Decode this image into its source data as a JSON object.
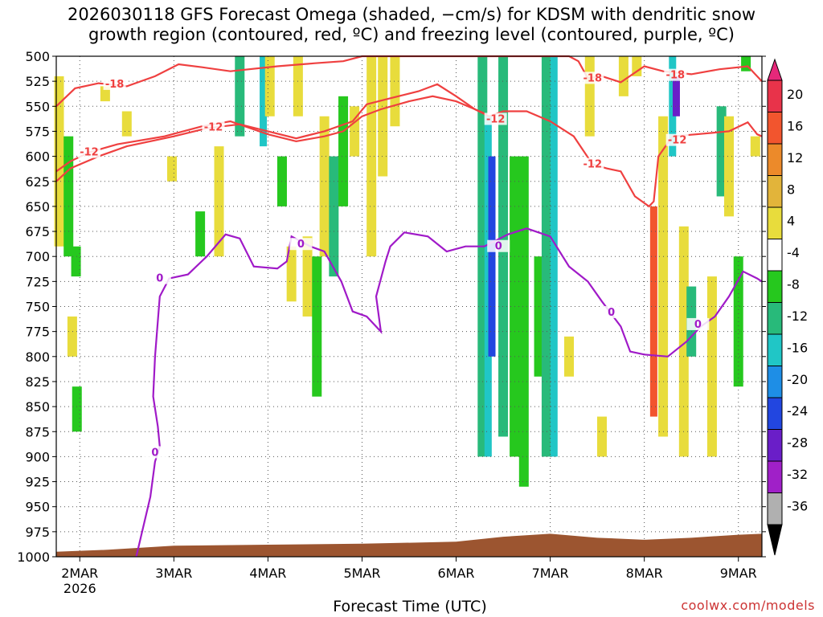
{
  "title_line1": "2026030118 GFS Forecast Omega (shaded, −cm/s) for KDSM with dendritic snow",
  "title_line2": "growth region (contoured, red, ºC) and freezing level (contoured, purple, ºC)",
  "credit": "coolwx.com/models",
  "chart_data": {
    "type": "heatmap",
    "title": "2026030118 GFS Forecast Omega (shaded, −cm/s) for KDSM with dendritic snow growth region (contoured, red, ºC) and freezing level (contoured, purple, ºC)",
    "xlabel": "Forecast Time (UTC)",
    "ylabel": "",
    "y_axis_inverted": true,
    "ylim": [
      1000,
      500
    ],
    "y_ticks": [
      500,
      525,
      550,
      575,
      600,
      625,
      650,
      675,
      700,
      725,
      750,
      775,
      800,
      825,
      850,
      875,
      900,
      925,
      950,
      975,
      1000
    ],
    "x_range_day": [
      1.75,
      9.25
    ],
    "x_ticks": [
      {
        "day": 2,
        "label": "2MAR",
        "sub": "2026"
      },
      {
        "day": 3,
        "label": "3MAR",
        "sub": ""
      },
      {
        "day": 4,
        "label": "4MAR",
        "sub": ""
      },
      {
        "day": 5,
        "label": "5MAR",
        "sub": ""
      },
      {
        "day": 6,
        "label": "6MAR",
        "sub": ""
      },
      {
        "day": 7,
        "label": "7MAR",
        "sub": ""
      },
      {
        "day": 8,
        "label": "8MAR",
        "sub": ""
      },
      {
        "day": 9,
        "label": "9MAR",
        "sub": ""
      }
    ],
    "grid": true,
    "colorbar": {
      "labels": [
        20,
        16,
        12,
        8,
        4,
        -4,
        -8,
        -12,
        -16,
        -20,
        -24,
        -28,
        -32,
        -36
      ],
      "colors": [
        "#e8334a",
        "#f2552e",
        "#ec8a2a",
        "#e2b43a",
        "#e8dc3c",
        "#ffffff",
        "#26c81e",
        "#28ba7a",
        "#20c6c6",
        "#1e8ee6",
        "#2246e0",
        "#6a1ec8",
        "#a020c8",
        "#b0b0b0"
      ],
      "top_triangle": "#e6287a",
      "bottom_triangle": "#000000"
    },
    "omega_cells": [
      {
        "day": 1.78,
        "p_top": 520,
        "p_bot": 690,
        "val": 6
      },
      {
        "day": 1.88,
        "p_top": 580,
        "p_bot": 700,
        "val": -6
      },
      {
        "day": 1.96,
        "p_top": 690,
        "p_bot": 720,
        "val": -6
      },
      {
        "day": 1.92,
        "p_top": 760,
        "p_bot": 800,
        "val": 6
      },
      {
        "day": 1.97,
        "p_top": 830,
        "p_bot": 875,
        "val": -6
      },
      {
        "day": 2.27,
        "p_top": 530,
        "p_bot": 545,
        "val": 6
      },
      {
        "day": 2.5,
        "p_top": 555,
        "p_bot": 580,
        "val": 6
      },
      {
        "day": 2.98,
        "p_top": 600,
        "p_bot": 625,
        "val": 6
      },
      {
        "day": 3.28,
        "p_top": 655,
        "p_bot": 700,
        "val": -6
      },
      {
        "day": 3.48,
        "p_top": 590,
        "p_bot": 700,
        "val": 6
      },
      {
        "day": 3.7,
        "p_top": 500,
        "p_bot": 580,
        "val": -8
      },
      {
        "day": 3.95,
        "p_top": 500,
        "p_bot": 590,
        "val": -14
      },
      {
        "day": 4.02,
        "p_top": 500,
        "p_bot": 560,
        "val": 6
      },
      {
        "day": 4.15,
        "p_top": 600,
        "p_bot": 650,
        "val": -6
      },
      {
        "day": 4.25,
        "p_top": 690,
        "p_bot": 745,
        "val": 6
      },
      {
        "day": 4.32,
        "p_top": 500,
        "p_bot": 560,
        "val": 6
      },
      {
        "day": 4.42,
        "p_top": 680,
        "p_bot": 760,
        "val": 6
      },
      {
        "day": 4.52,
        "p_top": 700,
        "p_bot": 840,
        "val": -6
      },
      {
        "day": 4.6,
        "p_top": 560,
        "p_bot": 700,
        "val": 6
      },
      {
        "day": 4.7,
        "p_top": 600,
        "p_bot": 720,
        "val": -8
      },
      {
        "day": 4.8,
        "p_top": 540,
        "p_bot": 650,
        "val": -6
      },
      {
        "day": 4.92,
        "p_top": 550,
        "p_bot": 600,
        "val": 6
      },
      {
        "day": 5.1,
        "p_top": 500,
        "p_bot": 700,
        "val": 6
      },
      {
        "day": 5.22,
        "p_top": 500,
        "p_bot": 620,
        "val": 6
      },
      {
        "day": 5.35,
        "p_top": 500,
        "p_bot": 570,
        "val": 6
      },
      {
        "day": 6.28,
        "p_top": 500,
        "p_bot": 900,
        "val": -8
      },
      {
        "day": 6.34,
        "p_top": 560,
        "p_bot": 900,
        "val": -12
      },
      {
        "day": 6.38,
        "p_top": 600,
        "p_bot": 800,
        "val": -22
      },
      {
        "day": 6.5,
        "p_top": 500,
        "p_bot": 880,
        "val": -8
      },
      {
        "day": 6.62,
        "p_top": 600,
        "p_bot": 900,
        "val": -6
      },
      {
        "day": 6.72,
        "p_top": 600,
        "p_bot": 930,
        "val": -6
      },
      {
        "day": 6.88,
        "p_top": 700,
        "p_bot": 820,
        "val": -6
      },
      {
        "day": 6.96,
        "p_top": 500,
        "p_bot": 900,
        "val": -8
      },
      {
        "day": 7.04,
        "p_top": 500,
        "p_bot": 900,
        "val": -14
      },
      {
        "day": 7.2,
        "p_top": 780,
        "p_bot": 820,
        "val": 6
      },
      {
        "day": 7.42,
        "p_top": 500,
        "p_bot": 580,
        "val": 6
      },
      {
        "day": 7.55,
        "p_top": 860,
        "p_bot": 900,
        "val": 6
      },
      {
        "day": 7.78,
        "p_top": 500,
        "p_bot": 540,
        "val": 6
      },
      {
        "day": 7.92,
        "p_top": 500,
        "p_bot": 520,
        "val": 6
      },
      {
        "day": 8.1,
        "p_top": 650,
        "p_bot": 860,
        "val": 12
      },
      {
        "day": 8.2,
        "p_top": 560,
        "p_bot": 880,
        "val": 6
      },
      {
        "day": 8.3,
        "p_top": 500,
        "p_bot": 600,
        "val": -14
      },
      {
        "day": 8.34,
        "p_top": 520,
        "p_bot": 560,
        "val": -24
      },
      {
        "day": 8.42,
        "p_top": 670,
        "p_bot": 900,
        "val": 6
      },
      {
        "day": 8.5,
        "p_top": 730,
        "p_bot": 800,
        "val": -8
      },
      {
        "day": 8.72,
        "p_top": 720,
        "p_bot": 900,
        "val": 6
      },
      {
        "day": 8.82,
        "p_top": 550,
        "p_bot": 640,
        "val": -8
      },
      {
        "day": 8.9,
        "p_top": 560,
        "p_bot": 660,
        "val": 6
      },
      {
        "day": 9.0,
        "p_top": 700,
        "p_bot": 830,
        "val": -6
      },
      {
        "day": 9.08,
        "p_top": 500,
        "p_bot": 515,
        "val": -6
      },
      {
        "day": 9.18,
        "p_top": 580,
        "p_bot": 600,
        "val": 6
      }
    ],
    "terrain_color": "#9c5530",
    "terrain": [
      {
        "day": 1.75,
        "p": 995
      },
      {
        "day": 2.3,
        "p": 993
      },
      {
        "day": 3.0,
        "p": 989
      },
      {
        "day": 4.0,
        "p": 988
      },
      {
        "day": 5.0,
        "p": 987
      },
      {
        "day": 6.0,
        "p": 985
      },
      {
        "day": 6.5,
        "p": 980
      },
      {
        "day": 7.0,
        "p": 977
      },
      {
        "day": 7.5,
        "p": 981
      },
      {
        "day": 8.0,
        "p": 983
      },
      {
        "day": 8.5,
        "p": 981
      },
      {
        "day": 9.0,
        "p": 978
      },
      {
        "day": 9.25,
        "p": 977
      }
    ],
    "contours": [
      {
        "name": "-18",
        "color": "#ef4040",
        "label_color": "#ef4040",
        "labels": [
          {
            "day": 2.37,
            "p": 528
          },
          {
            "day": 7.45,
            "p": 522
          },
          {
            "day": 8.33,
            "p": 519
          }
        ],
        "points": [
          [
            1.75,
            550
          ],
          [
            1.95,
            532
          ],
          [
            2.2,
            527
          ],
          [
            2.5,
            530
          ],
          [
            2.8,
            520
          ],
          [
            3.05,
            508
          ],
          [
            3.3,
            511
          ],
          [
            3.6,
            515
          ],
          [
            4.1,
            510
          ],
          [
            4.5,
            507
          ],
          [
            4.8,
            505
          ],
          [
            5.0,
            500
          ],
          [
            5.5,
            500
          ],
          [
            6.0,
            500
          ],
          [
            6.5,
            500
          ],
          [
            7.0,
            500
          ],
          [
            7.2,
            500
          ],
          [
            7.3,
            505
          ],
          [
            7.4,
            522
          ],
          [
            7.55,
            520
          ],
          [
            7.75,
            526
          ],
          [
            8.0,
            510
          ],
          [
            8.2,
            515
          ],
          [
            8.5,
            518
          ],
          [
            8.8,
            513
          ],
          [
            9.1,
            510
          ],
          [
            9.25,
            525
          ]
        ]
      },
      {
        "name": "-12 upper",
        "color": "#ef4040",
        "label_color": "#ef4040",
        "labels": [
          {
            "day": 3.42,
            "p": 571
          },
          {
            "day": 6.42,
            "p": 563
          },
          {
            "day": 7.45,
            "p": 608
          },
          {
            "day": 8.35,
            "p": 584
          }
        ],
        "points": [
          [
            1.75,
            625
          ],
          [
            1.9,
            612
          ],
          [
            2.2,
            600
          ],
          [
            2.5,
            590
          ],
          [
            3.0,
            580
          ],
          [
            3.35,
            572
          ],
          [
            3.7,
            568
          ],
          [
            4.0,
            575
          ],
          [
            4.3,
            582
          ],
          [
            4.6,
            575
          ],
          [
            4.9,
            565
          ],
          [
            5.05,
            548
          ],
          [
            5.3,
            542
          ],
          [
            5.6,
            535
          ],
          [
            5.8,
            528
          ],
          [
            6.0,
            540
          ],
          [
            6.2,
            553
          ],
          [
            6.35,
            560
          ],
          [
            6.5,
            555
          ],
          [
            6.75,
            555
          ],
          [
            7.0,
            565
          ],
          [
            7.25,
            580
          ],
          [
            7.45,
            608
          ],
          [
            7.6,
            612
          ],
          [
            7.75,
            615
          ],
          [
            7.9,
            640
          ],
          [
            8.05,
            650
          ],
          [
            8.1,
            645
          ],
          [
            8.15,
            600
          ],
          [
            8.3,
            580
          ],
          [
            8.55,
            578
          ],
          [
            8.9,
            575
          ],
          [
            9.1,
            566
          ],
          [
            9.2,
            578
          ],
          [
            9.25,
            580
          ]
        ]
      },
      {
        "name": "-12 lower",
        "color": "#ef4040",
        "label_color": "#ef4040",
        "labels": [
          {
            "day": 2.1,
            "p": 596
          }
        ],
        "points": [
          [
            1.75,
            615
          ],
          [
            1.9,
            605
          ],
          [
            2.1,
            596
          ],
          [
            2.4,
            588
          ],
          [
            2.9,
            580
          ],
          [
            3.3,
            570
          ],
          [
            3.6,
            565
          ],
          [
            4.0,
            578
          ],
          [
            4.3,
            585
          ],
          [
            4.6,
            580
          ],
          [
            4.8,
            575
          ],
          [
            5.0,
            560
          ],
          [
            5.2,
            553
          ],
          [
            5.5,
            545
          ],
          [
            5.75,
            540
          ],
          [
            6.0,
            545
          ],
          [
            6.3,
            557
          ]
        ]
      },
      {
        "name": "0",
        "color": "#a01ac8",
        "label_color": "#a01ac8",
        "labels": [
          {
            "day": 2.85,
            "p": 722
          },
          {
            "day": 4.35,
            "p": 688
          },
          {
            "day": 6.45,
            "p": 690
          },
          {
            "day": 7.65,
            "p": 756
          },
          {
            "day": 8.57,
            "p": 768
          },
          {
            "day": 2.8,
            "p": 896
          }
        ],
        "points": [
          [
            2.6,
            1000
          ],
          [
            2.75,
            940
          ],
          [
            2.8,
            905
          ],
          [
            2.85,
            890
          ],
          [
            2.83,
            870
          ],
          [
            2.78,
            840
          ],
          [
            2.8,
            800
          ],
          [
            2.85,
            740
          ],
          [
            2.95,
            722
          ],
          [
            3.15,
            718
          ],
          [
            3.35,
            700
          ],
          [
            3.55,
            678
          ],
          [
            3.7,
            682
          ],
          [
            3.85,
            710
          ],
          [
            4.1,
            712
          ],
          [
            4.2,
            705
          ],
          [
            4.25,
            680
          ],
          [
            4.45,
            690
          ],
          [
            4.6,
            695
          ],
          [
            4.78,
            725
          ],
          [
            4.9,
            755
          ],
          [
            5.05,
            760
          ],
          [
            5.2,
            775
          ],
          [
            5.15,
            740
          ],
          [
            5.25,
            705
          ],
          [
            5.3,
            690
          ],
          [
            5.45,
            676
          ],
          [
            5.7,
            680
          ],
          [
            5.9,
            695
          ],
          [
            6.1,
            690
          ],
          [
            6.3,
            690
          ],
          [
            6.55,
            678
          ],
          [
            6.75,
            672
          ],
          [
            7.0,
            680
          ],
          [
            7.2,
            710
          ],
          [
            7.4,
            725
          ],
          [
            7.55,
            745
          ],
          [
            7.75,
            770
          ],
          [
            7.85,
            795
          ],
          [
            8.0,
            798
          ],
          [
            8.25,
            800
          ],
          [
            8.45,
            785
          ],
          [
            8.6,
            770
          ],
          [
            8.75,
            760
          ],
          [
            8.9,
            740
          ],
          [
            9.05,
            715
          ],
          [
            9.2,
            722
          ],
          [
            9.25,
            725
          ]
        ]
      }
    ]
  },
  "x_axis": {
    "title": "Forecast Time (UTC)"
  }
}
